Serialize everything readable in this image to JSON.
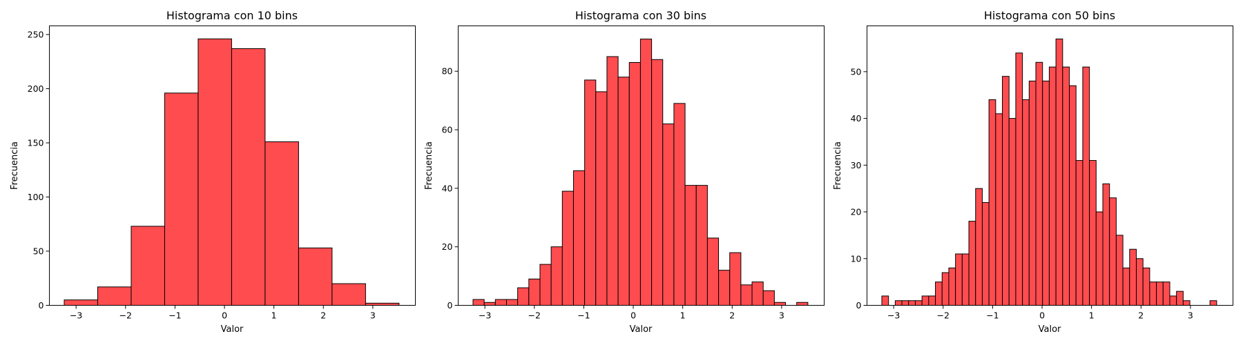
{
  "colors": {
    "bar_fill": "#ff4c4f",
    "bar_edge": "#000000",
    "frame": "#000000"
  },
  "chart_data": [
    {
      "type": "bar",
      "title": "Histograma con 10 bins",
      "xlabel": "Valor",
      "ylabel": "Frecuencia",
      "xlim": [
        -3.54,
        3.86
      ],
      "ylim": [
        0,
        258
      ],
      "xticks": [
        -3,
        -2,
        -1,
        0,
        1,
        2,
        3
      ],
      "xtick_labels": [
        "−3",
        "−2",
        "−1",
        "0",
        "1",
        "2",
        "3"
      ],
      "yticks": [
        0,
        50,
        100,
        150,
        200,
        250
      ],
      "bin_start": -3.24,
      "bin_end": 3.53,
      "values": [
        5,
        17,
        73,
        196,
        246,
        237,
        151,
        53,
        20,
        2
      ]
    },
    {
      "type": "bar",
      "title": "Histograma con 30 bins",
      "xlabel": "Valor",
      "ylabel": "Frecuencia",
      "xlim": [
        -3.54,
        3.86
      ],
      "ylim": [
        0,
        95.5
      ],
      "xticks": [
        -3,
        -2,
        -1,
        0,
        1,
        2,
        3
      ],
      "xtick_labels": [
        "−3",
        "−2",
        "−1",
        "0",
        "1",
        "2",
        "3"
      ],
      "yticks": [
        0,
        20,
        40,
        60,
        80
      ],
      "bin_start": -3.24,
      "bin_end": 3.53,
      "values": [
        2,
        1,
        2,
        2,
        6,
        9,
        14,
        20,
        39,
        46,
        77,
        73,
        85,
        78,
        83,
        91,
        84,
        62,
        69,
        41,
        41,
        23,
        12,
        18,
        7,
        8,
        5,
        1,
        0,
        1
      ]
    },
    {
      "type": "bar",
      "title": "Histograma con 50 bins",
      "xlabel": "Valor",
      "ylabel": "Frecuencia",
      "xlim": [
        -3.54,
        3.86
      ],
      "ylim": [
        0,
        59.8
      ],
      "xticks": [
        -3,
        -2,
        -1,
        0,
        1,
        2,
        3
      ],
      "xtick_labels": [
        "−3",
        "−2",
        "−1",
        "0",
        "1",
        "2",
        "3"
      ],
      "yticks": [
        0,
        10,
        20,
        30,
        40,
        50
      ],
      "bin_start": -3.24,
      "bin_end": 3.53,
      "values": [
        2,
        0,
        1,
        1,
        1,
        1,
        2,
        2,
        5,
        7,
        8,
        11,
        11,
        18,
        25,
        22,
        44,
        41,
        49,
        40,
        54,
        44,
        48,
        52,
        48,
        51,
        57,
        51,
        47,
        31,
        51,
        31,
        20,
        26,
        23,
        15,
        8,
        12,
        10,
        8,
        5,
        5,
        5,
        2,
        3,
        1,
        0,
        0,
        0,
        1
      ]
    }
  ]
}
